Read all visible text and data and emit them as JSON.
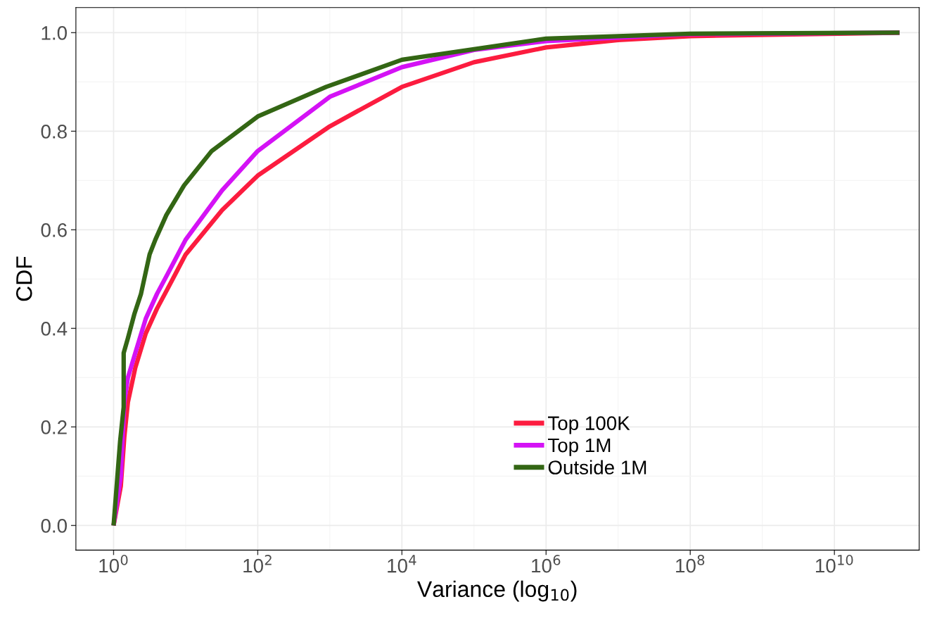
{
  "chart_data": {
    "type": "line",
    "xlabel": "Variance (log$_{10}$)",
    "ylabel": "CDF",
    "log": "x",
    "xlim": [
      0.3,
      150000000000.0
    ],
    "ylim": [
      -0.05,
      1.051
    ],
    "xticks": [
      {
        "value": 1,
        "label": "10$^{0}$"
      },
      {
        "value": 100,
        "label": "10$^{2}$"
      },
      {
        "value": 10000,
        "label": "10$^{4}$"
      },
      {
        "value": 1000000,
        "label": "10$^{6}$"
      },
      {
        "value": 100000000,
        "label": "10$^{8}$"
      },
      {
        "value": 10000000000,
        "label": "10$^{10}$"
      }
    ],
    "yticks": [
      {
        "value": 0,
        "label": "0.0"
      },
      {
        "value": 0.2,
        "label": "0.2"
      },
      {
        "value": 0.4,
        "label": "0.4"
      },
      {
        "value": 0.6,
        "label": "0.6"
      },
      {
        "value": 0.8,
        "label": "0.8"
      },
      {
        "value": 1,
        "label": "1.0"
      }
    ],
    "grid": true,
    "legend": "bottom",
    "marker": "none",
    "line_style": "solid",
    "series": [
      {
        "name": "Top 100K",
        "color": "#fc1c3f",
        "x": [
          1,
          1.26,
          1.41,
          1.58,
          2.0,
          2.8,
          4.0,
          5.6,
          10,
          32,
          100,
          1000,
          10000,
          100000,
          1000000,
          10000000,
          100000000,
          80000000000
        ],
        "values": [
          0,
          0.08,
          0.18,
          0.25,
          0.32,
          0.39,
          0.44,
          0.48,
          0.55,
          0.64,
          0.71,
          0.81,
          0.89,
          0.94,
          0.97,
          0.985,
          0.993,
          1.0
        ]
      },
      {
        "name": "Top 1M",
        "color": "#d412f5",
        "x": [
          1,
          1.26,
          1.41,
          1.58,
          2.0,
          2.8,
          4.0,
          5.6,
          10,
          32,
          100,
          1000,
          10000,
          100000,
          1000000,
          100000000,
          80000000000
        ],
        "values": [
          0,
          0.1,
          0.25,
          0.3,
          0.35,
          0.42,
          0.47,
          0.51,
          0.58,
          0.68,
          0.76,
          0.87,
          0.93,
          0.965,
          0.983,
          0.997,
          1.0
        ]
      },
      {
        "name": "Outside 1M",
        "color": "#336614",
        "x": [
          1,
          1.23,
          1.38,
          1.38,
          1.58,
          1.95,
          2.4,
          3.16,
          3.8,
          5.4,
          9.5,
          23,
          100,
          890,
          10000,
          1000000,
          100000000,
          80000000000
        ],
        "values": [
          0,
          0.17,
          0.24,
          0.35,
          0.38,
          0.43,
          0.47,
          0.55,
          0.58,
          0.63,
          0.69,
          0.76,
          0.83,
          0.89,
          0.945,
          0.988,
          0.998,
          1.0
        ]
      }
    ]
  }
}
